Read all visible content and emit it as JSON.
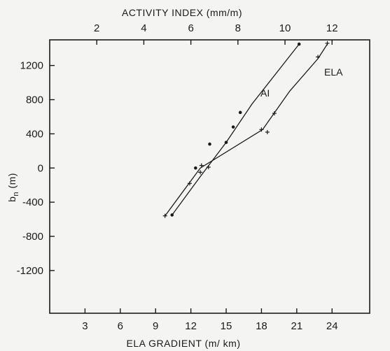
{
  "chart_data": {
    "type": "line",
    "title": "",
    "top_axis": {
      "label": "ACTIVITY INDEX (mm/m)",
      "range": [
        0,
        13.6
      ],
      "ticks": [
        2,
        4,
        6,
        8,
        10,
        12
      ],
      "tick_labels": [
        "2",
        "4",
        "6",
        "8",
        "10",
        "12"
      ]
    },
    "bottom_axis": {
      "label": "ELA GRADIENT (m/ km)",
      "range": [
        0,
        27.2
      ],
      "ticks": [
        3,
        6,
        9,
        12,
        15,
        18,
        21,
        24
      ],
      "tick_labels": [
        "3",
        "6",
        "9",
        "12",
        "15",
        "18",
        "21",
        "24"
      ]
    },
    "y_axis": {
      "label": "b",
      "label_subscript": "n",
      "label_suffix": " (m)",
      "range": [
        -1700,
        1500
      ],
      "ticks": [
        1200,
        800,
        400,
        0,
        -400,
        -800,
        -1200
      ],
      "tick_labels": [
        "1200",
        "800",
        "400",
        "0",
        "-400",
        "-800",
        "-1200"
      ]
    },
    "grid": false,
    "series": [
      {
        "name": "AI",
        "x_axis": "top",
        "line": [
          [
            5.2,
            -550
          ],
          [
            6.4,
            -100
          ],
          [
            7.5,
            300
          ],
          [
            8.6,
            750
          ],
          [
            9.6,
            1100
          ],
          [
            10.6,
            1450
          ]
        ],
        "points": [
          [
            5.2,
            -550
          ],
          [
            6.2,
            0
          ],
          [
            6.8,
            280
          ],
          [
            7.5,
            300
          ],
          [
            8.1,
            650
          ],
          [
            7.8,
            480
          ],
          [
            10.6,
            1450
          ]
        ]
      },
      {
        "name": "ELA",
        "x_axis": "bottom",
        "line": [
          [
            9.8,
            -560
          ],
          [
            12.8,
            0
          ],
          [
            18.1,
            450
          ],
          [
            20.4,
            900
          ],
          [
            22.8,
            1280
          ],
          [
            23.6,
            1450
          ]
        ],
        "points": [
          [
            9.8,
            -560
          ],
          [
            11.9,
            -180
          ],
          [
            12.8,
            -50
          ],
          [
            12.9,
            30
          ],
          [
            13.5,
            10
          ],
          [
            18.0,
            450
          ],
          [
            18.5,
            420
          ],
          [
            19.1,
            640
          ],
          [
            22.8,
            1300
          ],
          [
            23.6,
            1460
          ]
        ]
      }
    ]
  }
}
